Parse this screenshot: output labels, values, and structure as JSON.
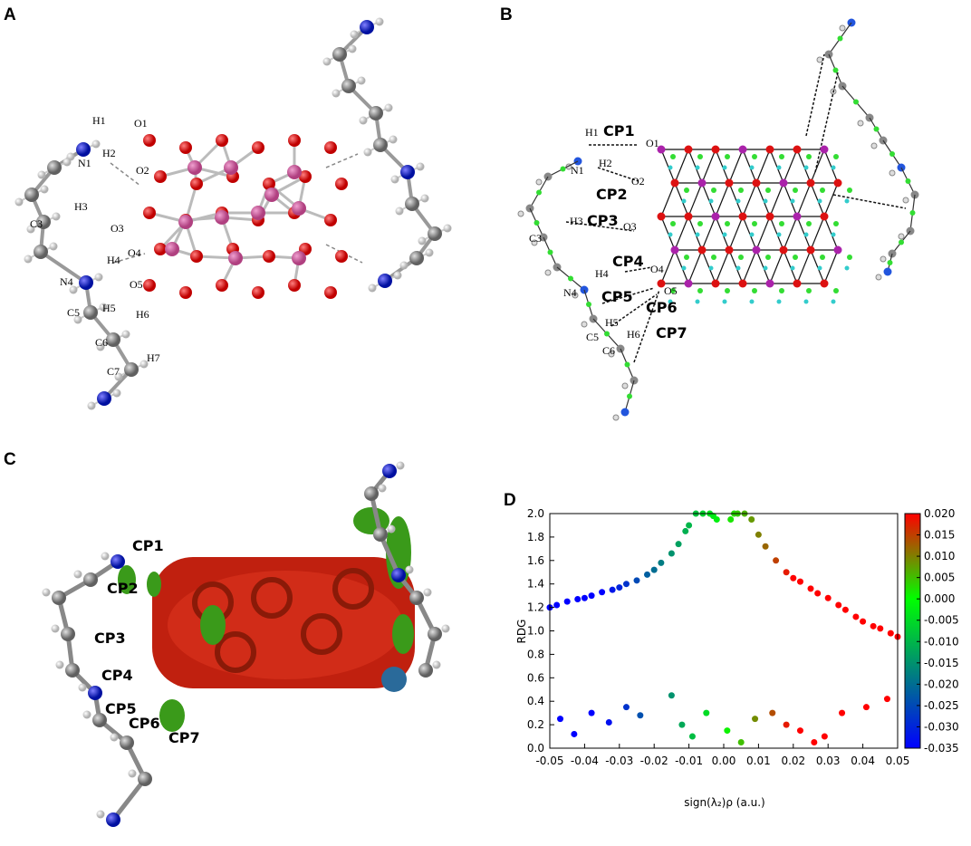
{
  "panels": {
    "a": {
      "letter": "A",
      "labels": [
        "H1",
        "N1",
        "H2",
        "O1",
        "O2",
        "H3",
        "C3",
        "O3",
        "O4",
        "H4",
        "N4",
        "O5",
        "C5",
        "H5",
        "H6",
        "C6",
        "C7",
        "H7"
      ]
    },
    "b": {
      "letter": "B",
      "labels": [
        "H1",
        "CP1",
        "O1",
        "N1",
        "H2",
        "O2",
        "CP2",
        "H3",
        "CP3",
        "O3",
        "C3",
        "CP4",
        "H4",
        "O4",
        "N4",
        "CP5",
        "O5",
        "CP6",
        "H5",
        "H6",
        "CP7",
        "C5",
        "C6"
      ]
    },
    "c": {
      "letter": "C",
      "labels": [
        "CP1",
        "CP2",
        "CP3",
        "CP4",
        "CP5",
        "CP6",
        "CP7"
      ]
    },
    "d": {
      "letter": "D"
    }
  },
  "chart_data": {
    "type": "scatter",
    "xlabel": "sign(λ₂)ρ (a.u.)",
    "ylabel": "RDG",
    "xlim": [
      -0.05,
      0.05
    ],
    "xticks": [
      -0.05,
      -0.04,
      -0.03,
      -0.02,
      -0.01,
      {
        "value": 0,
        "label": "0.00"
      },
      0.01,
      0.02,
      0.03,
      0.04,
      0.05
    ],
    "ylim": [
      0,
      2
    ],
    "yticks": [
      {
        "value": 0,
        "label": "0.0"
      },
      0.2,
      0.4,
      0.6,
      0.8,
      {
        "value": 1,
        "label": "1.0"
      },
      1.2,
      1.4,
      1.6,
      1.8,
      {
        "value": 2,
        "label": "2.0"
      }
    ],
    "colorbar": {
      "lim": [
        -0.035,
        0.02
      ],
      "colors": [
        "#0000ff",
        "#00ff00",
        "#ff0000"
      ],
      "ticks": [
        {
          "value": 0.02,
          "label": "0.020"
        },
        0.015,
        {
          "value": 0.01,
          "label": "0.010"
        },
        0.005,
        {
          "value": 0,
          "label": "0.000"
        },
        -0.005,
        {
          "value": -0.01,
          "label": "-0.010"
        },
        -0.015,
        {
          "value": -0.02,
          "label": "-0.020"
        },
        -0.025,
        {
          "value": -0.03,
          "label": "-0.030"
        },
        -0.035
      ]
    },
    "x": [
      -0.05,
      -0.048,
      -0.045,
      -0.042,
      -0.04,
      -0.038,
      -0.035,
      -0.032,
      -0.03,
      -0.028,
      -0.025,
      -0.022,
      -0.02,
      -0.018,
      -0.015,
      -0.013,
      -0.011,
      -0.01,
      -0.008,
      -0.006,
      -0.004,
      -0.003,
      -0.002,
      0.002,
      0.003,
      0.004,
      0.006,
      0.008,
      0.01,
      0.012,
      0.015,
      0.018,
      0.02,
      0.022,
      0.025,
      0.027,
      0.03,
      0.033,
      0.035,
      0.038,
      0.04,
      0.043,
      0.045,
      0.048,
      0.05,
      -0.047,
      -0.043,
      -0.038,
      -0.033,
      -0.028,
      -0.024,
      -0.015,
      -0.012,
      -0.009,
      -0.005,
      0.001,
      0.005,
      0.009,
      0.014,
      0.018,
      0.022,
      0.026,
      0.029,
      0.034,
      0.041,
      0.047
    ],
    "values": [
      1.2,
      1.22,
      1.25,
      1.27,
      1.28,
      1.3,
      1.33,
      1.35,
      1.37,
      1.4,
      1.43,
      1.48,
      1.52,
      1.58,
      1.66,
      1.74,
      1.85,
      1.9,
      2.0,
      2.0,
      2.0,
      1.98,
      1.95,
      1.95,
      2.0,
      2.0,
      2.0,
      1.95,
      1.82,
      1.72,
      1.6,
      1.5,
      1.45,
      1.42,
      1.36,
      1.32,
      1.28,
      1.22,
      1.18,
      1.12,
      1.08,
      1.04,
      1.02,
      0.98,
      0.95,
      0.25,
      0.12,
      0.3,
      0.22,
      0.35,
      0.28,
      0.45,
      0.2,
      0.1,
      0.3,
      0.15,
      0.05,
      0.25,
      0.3,
      0.2,
      0.15,
      0.05,
      0.1,
      0.3,
      0.35,
      0.42
    ]
  }
}
